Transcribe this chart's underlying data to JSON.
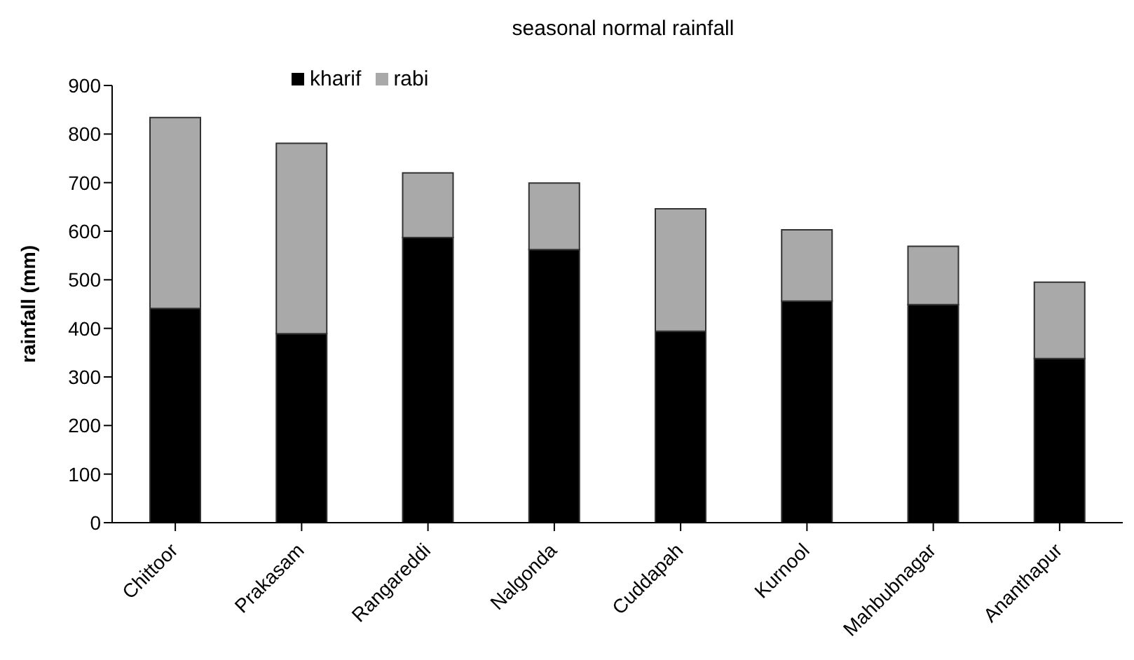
{
  "chart_data": {
    "type": "bar",
    "title": "seasonal normal rainfall",
    "ylabel": "rainfall (mm)",
    "stacked": true,
    "categories": [
      "Chittoor",
      "Prakasam",
      "Rangareddi",
      "Nalgonda",
      "Cuddapah",
      "Kurnool",
      "Mahbubnagar",
      "Ananthapur"
    ],
    "series": [
      {
        "name": "kharif",
        "color": "#000000",
        "values": [
          441,
          389,
          587,
          562,
          394,
          456,
          449,
          338
        ]
      },
      {
        "name": "rabi",
        "color": "#a9a9a9",
        "values": [
          393,
          392,
          133,
          137,
          252,
          147,
          120,
          157
        ]
      }
    ],
    "ylim": [
      0,
      900
    ],
    "yticks": [
      0,
      100,
      200,
      300,
      400,
      500,
      600,
      700,
      800,
      900
    ],
    "grid": false,
    "legend": "top left"
  }
}
